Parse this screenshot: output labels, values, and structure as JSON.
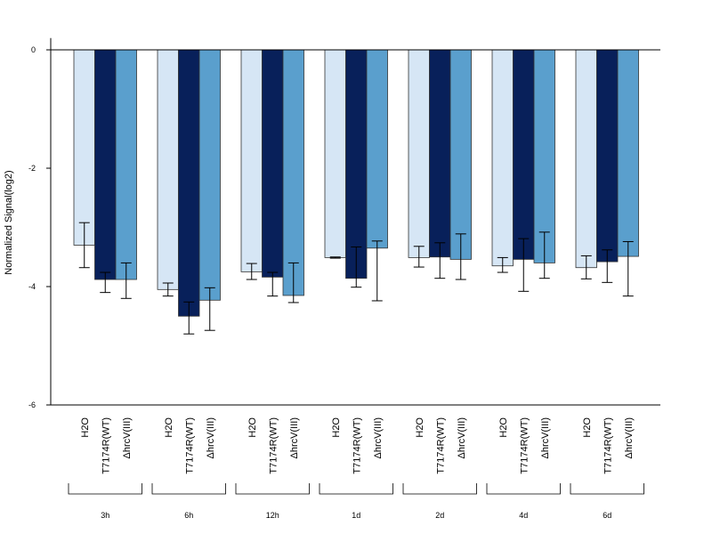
{
  "chart_data": {
    "type": "bar",
    "title": "",
    "xlabel": "",
    "ylabel": "Normalized Signal(log2)",
    "ylim": [
      -6,
      0.2
    ],
    "yticks": [
      0,
      -2,
      -4,
      -6
    ],
    "baseline": 0,
    "grid": false,
    "legend": "none",
    "categories": [
      "H2O",
      "T7174R(WT)",
      "ΔhrcV(III)"
    ],
    "colors": [
      "#d6e6f5",
      "#08205a",
      "#5a9fcd"
    ],
    "groups": [
      {
        "label": "3h",
        "values": [
          -3.3,
          -3.88,
          -3.88
        ],
        "err_low": [
          -3.68,
          -4.1,
          -4.2
        ],
        "err_high": [
          -2.92,
          -3.76,
          -3.6
        ]
      },
      {
        "label": "6h",
        "values": [
          -4.05,
          -4.5,
          -4.23
        ],
        "err_low": [
          -4.16,
          -4.8,
          -4.74
        ],
        "err_high": [
          -3.94,
          -4.26,
          -4.02
        ]
      },
      {
        "label": "12h",
        "values": [
          -3.75,
          -3.84,
          -4.15
        ],
        "err_low": [
          -3.88,
          -4.16,
          -4.27
        ],
        "err_high": [
          -3.61,
          -3.76,
          -3.6
        ]
      },
      {
        "label": "1d",
        "values": [
          -3.51,
          -3.86,
          -3.35
        ],
        "err_low": [
          -3.52,
          -4.01,
          -4.24
        ],
        "err_high": [
          -3.5,
          -3.33,
          -3.23
        ]
      },
      {
        "label": "2d",
        "values": [
          -3.51,
          -3.5,
          -3.54
        ],
        "err_low": [
          -3.67,
          -3.86,
          -3.88
        ],
        "err_high": [
          -3.32,
          -3.26,
          -3.11
        ]
      },
      {
        "label": "4d",
        "values": [
          -3.65,
          -3.54,
          -3.6
        ],
        "err_low": [
          -3.76,
          -4.08,
          -3.86
        ],
        "err_high": [
          -3.51,
          -3.19,
          -3.08
        ]
      },
      {
        "label": "6d",
        "values": [
          -3.68,
          -3.58,
          -3.49
        ],
        "err_low": [
          -3.87,
          -3.93,
          -4.16
        ],
        "err_high": [
          -3.48,
          -3.38,
          -3.24
        ]
      }
    ]
  }
}
